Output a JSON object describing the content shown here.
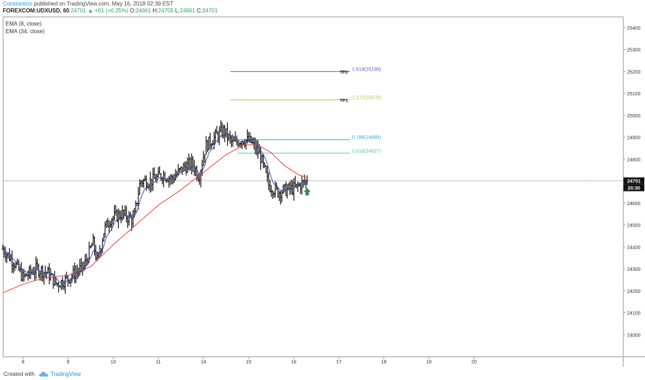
{
  "header": {
    "author": "Constantino",
    "published": "published on TradingView.com, May 16, 2018 02:39 EST",
    "symbol": "FOREXCOM:UDXUSD, 60",
    "price": "24701",
    "change": "+61 (+0.25%)",
    "o_label": "O:",
    "o_value": "24661",
    "h_label": "H:",
    "h_value": "24705",
    "l_label": "L:",
    "l_value": "24661",
    "c_label": "C:",
    "c_value": "24701"
  },
  "footer": {
    "created_with": "Created with",
    "brand": "TradingView"
  },
  "colors": {
    "ema8": "#3f51b5",
    "ema34": "#e53935",
    "tp2_line": "#5c5cb8",
    "tp1_line": "#a8c84a",
    "fib786_line": "#2fa8d8",
    "fib618_line": "#4fc9a0",
    "arrow": "#2e8b57",
    "up": "#2e9e5a"
  },
  "chart_data": {
    "type": "candlestick",
    "legend": [
      "EMA (8, close)",
      "EMA (34, close)"
    ],
    "ylim": [
      23900,
      25450
    ],
    "y_ticks": [
      24000,
      24100,
      24200,
      24300,
      24400,
      24500,
      24600,
      24700,
      24800,
      24900,
      25000,
      25100,
      25200,
      25300,
      25400
    ],
    "x_range": [
      7.55,
      21.3
    ],
    "x_ticks": [
      8,
      9,
      10,
      11,
      14,
      15,
      16,
      17,
      18,
      19,
      20
    ],
    "x_tick_positions": [
      8,
      9,
      10,
      11,
      12,
      13,
      14,
      15,
      16,
      17,
      18
    ],
    "current_price": 24701,
    "current_price_label": "24701",
    "countdown_label": "20:30",
    "levels": [
      {
        "label": "TP2",
        "text": "1.618(25199)",
        "value": 25199,
        "x_start": 12.6,
        "x_end": 15.25,
        "color_key": "tp2_line"
      },
      {
        "label": "TP1",
        "text": "1.272(25070)",
        "value": 25070,
        "x_start": 12.6,
        "x_end": 15.25,
        "color_key": "tp1_line"
      },
      {
        "label": "",
        "text": "0.786(24889)",
        "value": 24889,
        "x_start": 12.75,
        "x_end": 15.25,
        "color_key": "fib786_line"
      },
      {
        "label": "",
        "text": "0.618(24827)",
        "value": 24827,
        "x_start": 12.75,
        "x_end": 15.25,
        "color_key": "fib618_line"
      }
    ],
    "anchors": [
      {
        "x": 7.55,
        "y": 24390
      },
      {
        "x": 7.8,
        "y": 24330
      },
      {
        "x": 8.0,
        "y": 24260
      },
      {
        "x": 8.3,
        "y": 24300
      },
      {
        "x": 8.55,
        "y": 24280
      },
      {
        "x": 8.75,
        "y": 24230
      },
      {
        "x": 8.95,
        "y": 24250
      },
      {
        "x": 9.15,
        "y": 24280
      },
      {
        "x": 9.35,
        "y": 24310
      },
      {
        "x": 9.55,
        "y": 24420
      },
      {
        "x": 9.65,
        "y": 24330
      },
      {
        "x": 9.8,
        "y": 24480
      },
      {
        "x": 9.95,
        "y": 24530
      },
      {
        "x": 10.2,
        "y": 24550
      },
      {
        "x": 10.45,
        "y": 24520
      },
      {
        "x": 10.6,
        "y": 24700
      },
      {
        "x": 10.85,
        "y": 24700
      },
      {
        "x": 11.1,
        "y": 24730
      },
      {
        "x": 11.3,
        "y": 24710
      },
      {
        "x": 11.55,
        "y": 24760
      },
      {
        "x": 11.75,
        "y": 24780
      },
      {
        "x": 11.9,
        "y": 24720
      },
      {
        "x": 12.05,
        "y": 24860
      },
      {
        "x": 12.25,
        "y": 24900
      },
      {
        "x": 12.45,
        "y": 24930
      },
      {
        "x": 12.65,
        "y": 24870
      },
      {
        "x": 12.85,
        "y": 24890
      },
      {
        "x": 13.05,
        "y": 24880
      },
      {
        "x": 13.25,
        "y": 24820
      },
      {
        "x": 13.45,
        "y": 24680
      },
      {
        "x": 13.65,
        "y": 24650
      },
      {
        "x": 13.85,
        "y": 24660
      },
      {
        "x": 14.05,
        "y": 24670
      },
      {
        "x": 14.2,
        "y": 24690
      },
      {
        "x": 14.3,
        "y": 24701
      }
    ],
    "ema34_points": [
      {
        "x": 7.55,
        "y": 24190
      },
      {
        "x": 8.0,
        "y": 24230
      },
      {
        "x": 8.5,
        "y": 24260
      },
      {
        "x": 9.0,
        "y": 24270
      },
      {
        "x": 9.5,
        "y": 24310
      },
      {
        "x": 10.0,
        "y": 24410
      },
      {
        "x": 10.5,
        "y": 24500
      },
      {
        "x": 11.0,
        "y": 24590
      },
      {
        "x": 11.5,
        "y": 24660
      },
      {
        "x": 12.0,
        "y": 24740
      },
      {
        "x": 12.5,
        "y": 24820
      },
      {
        "x": 12.9,
        "y": 24865
      },
      {
        "x": 13.2,
        "y": 24865
      },
      {
        "x": 13.5,
        "y": 24830
      },
      {
        "x": 13.8,
        "y": 24770
      },
      {
        "x": 14.1,
        "y": 24730
      },
      {
        "x": 14.3,
        "y": 24715
      }
    ]
  }
}
